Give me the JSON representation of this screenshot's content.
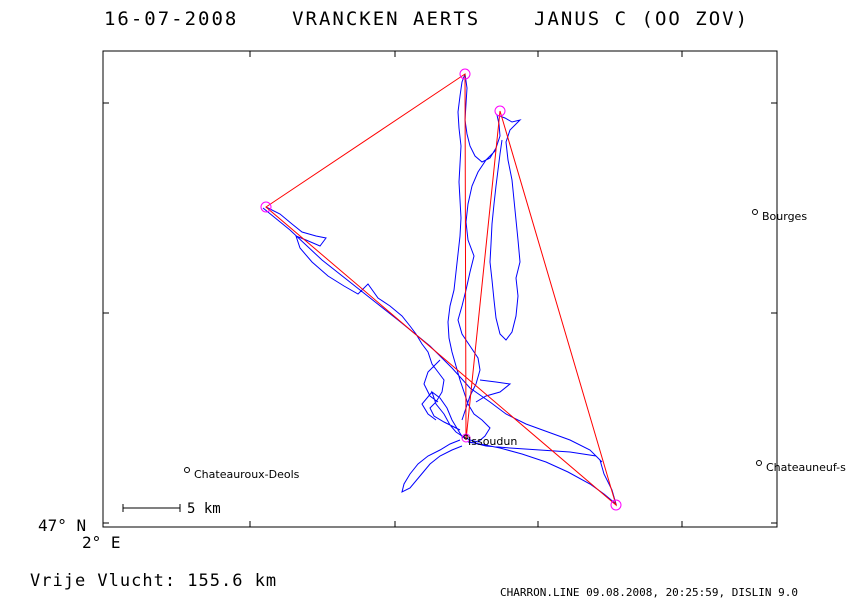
{
  "header": {
    "date": "16-07-2008",
    "pilot": "VRANCKEN AERTS",
    "glider": "JANUS C (OO ZOV)"
  },
  "axes": {
    "lat_label": "47° N",
    "lon_label": "2° E"
  },
  "scale_bar": {
    "label": "5 km"
  },
  "places": [
    {
      "name": "Bourges",
      "icon": "circle-marker"
    },
    {
      "name": "Chateauroux-Deols",
      "icon": "circle-marker"
    },
    {
      "name": "Chateauneuf-s",
      "icon": "circle-marker"
    },
    {
      "name": "Issoudun",
      "icon": "circle-marker"
    }
  ],
  "flight": {
    "distance_text": "Vrije Vlucht:  155.6 km",
    "track_color": "#0000ff",
    "task_color": "#ff0000",
    "turnpoint_color": "#ff00ff"
  },
  "footer": {
    "text": "CHARRON.LINE 09.08.2008, 20:25:59, DISLIN 9.0"
  }
}
